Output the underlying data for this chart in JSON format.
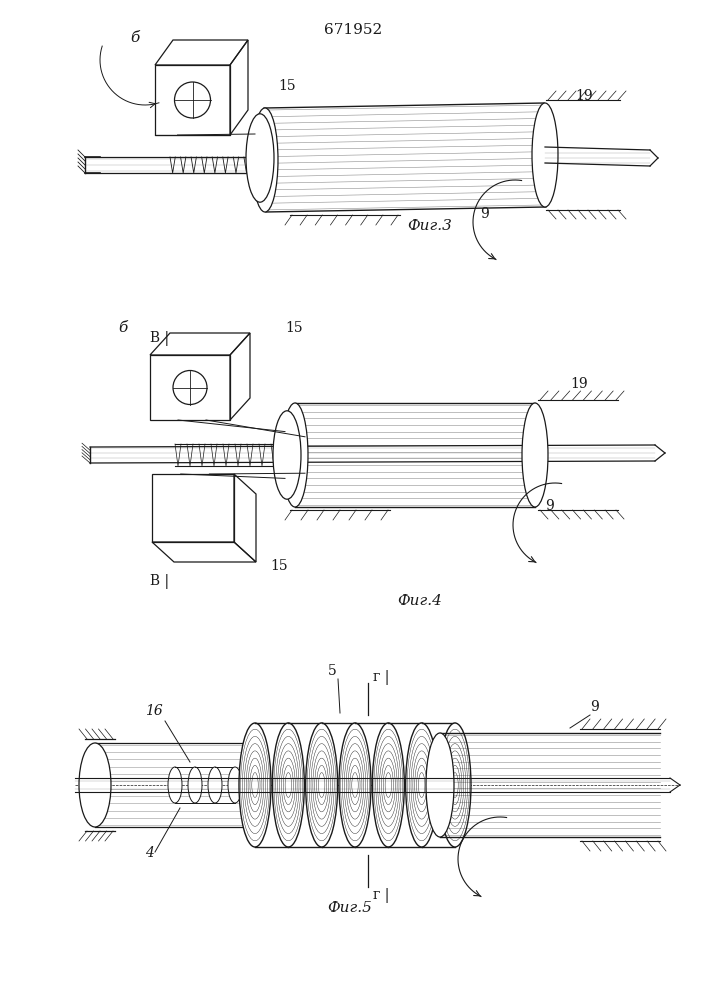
{
  "title": "671952",
  "fig3_label": "Фиг.3",
  "fig4_label": "Фиг.4",
  "fig5_label": "Фиг.5",
  "bg_color": "#ffffff",
  "lc": "#1a1a1a",
  "lw": 0.7
}
